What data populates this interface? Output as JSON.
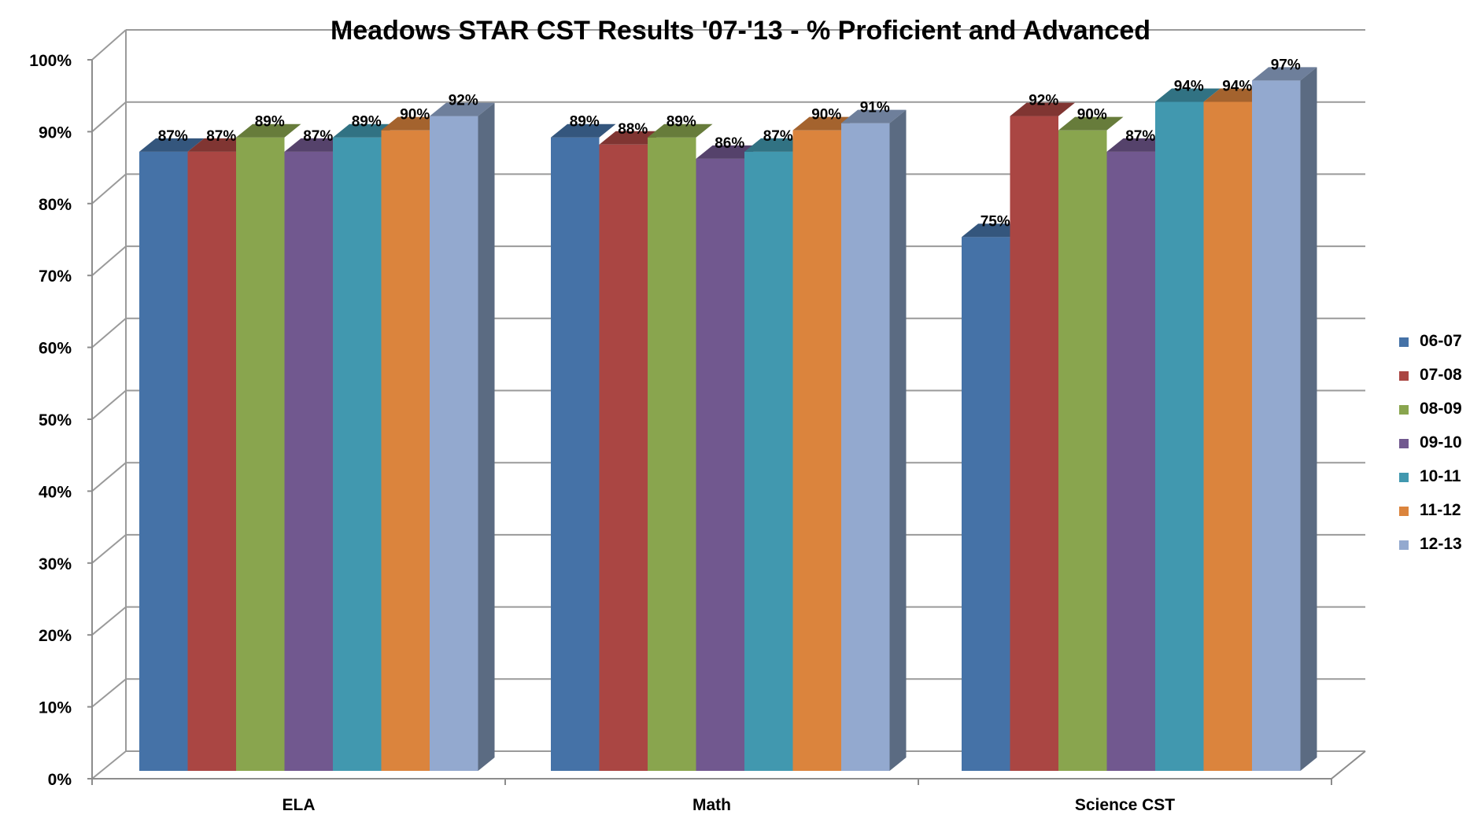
{
  "chart_data": {
    "type": "bar",
    "title": "Meadows STAR CST Results '07-'13 - % Proficient and Advanced",
    "xlabel": "",
    "ylabel": "",
    "categories": [
      "ELA",
      "Math",
      "Science CST"
    ],
    "ylim": [
      0,
      100
    ],
    "y_ticks": [
      "0%",
      "10%",
      "20%",
      "30%",
      "40%",
      "50%",
      "60%",
      "70%",
      "80%",
      "90%",
      "100%"
    ],
    "grid": true,
    "legend_position": "right",
    "series": [
      {
        "name": "06-07",
        "color": "#4572A7",
        "values": [
          87,
          89,
          75
        ],
        "labels": [
          "87%",
          "89%",
          "75%"
        ]
      },
      {
        "name": "07-08",
        "color": "#AA4643",
        "values": [
          87,
          88,
          92
        ],
        "labels": [
          "87%",
          "88%",
          "92%"
        ]
      },
      {
        "name": "08-09",
        "color": "#89A54E",
        "values": [
          89,
          89,
          90
        ],
        "labels": [
          "89%",
          "89%",
          "90%"
        ]
      },
      {
        "name": "09-10",
        "color": "#71588F",
        "values": [
          87,
          86,
          87
        ],
        "labels": [
          "87%",
          "86%",
          "87%"
        ]
      },
      {
        "name": "10-11",
        "color": "#4198AF",
        "values": [
          89,
          87,
          94
        ],
        "labels": [
          "89%",
          "87%",
          "94%"
        ]
      },
      {
        "name": "11-12",
        "color": "#DB843D",
        "values": [
          90,
          90,
          94
        ],
        "labels": [
          "90%",
          "90%",
          "94%"
        ]
      },
      {
        "name": "12-13",
        "color": "#93A9CF",
        "values": [
          92,
          91,
          97
        ],
        "labels": [
          "92%",
          "91%",
          "97%"
        ]
      }
    ]
  }
}
